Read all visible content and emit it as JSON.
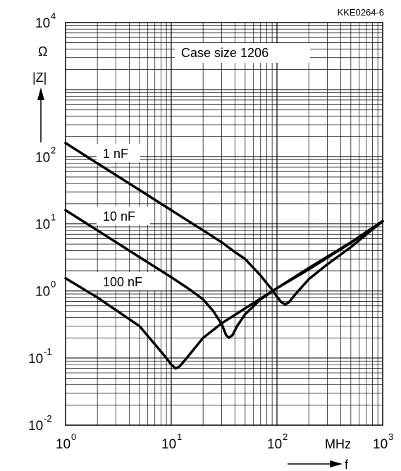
{
  "chart_data": {
    "type": "line",
    "figure_id": "KKE0264-6",
    "annotation": "Case size 1206",
    "x_scale": "log",
    "y_scale": "log",
    "xlim": [
      1,
      1000
    ],
    "ylim": [
      0.01,
      10000
    ],
    "grid": true,
    "x_tick_labels": [
      {
        "base": "10",
        "exp": "0"
      },
      {
        "base": "10",
        "exp": "1"
      },
      {
        "base": "10",
        "exp": "2"
      },
      {
        "base": "10",
        "exp": "3"
      }
    ],
    "y_tick_labels": [
      {
        "base": "10",
        "exp": "-2"
      },
      {
        "base": "10",
        "exp": "-1"
      },
      {
        "base": "10",
        "exp": "0"
      },
      {
        "base": "10",
        "exp": "1"
      },
      {
        "base": "10",
        "exp": "2"
      },
      {
        "base": "10",
        "exp": "4"
      }
    ],
    "x_unit": "MHz",
    "x_symbol": "f",
    "y_unit": "Ω",
    "y_symbol": "|Z|",
    "series": [
      {
        "name": "1 nF",
        "points": [
          [
            1,
            160
          ],
          [
            2,
            80
          ],
          [
            5,
            32
          ],
          [
            10,
            16
          ],
          [
            20,
            8
          ],
          [
            30,
            5.3
          ],
          [
            40,
            3.8
          ],
          [
            50,
            3
          ],
          [
            60,
            2.2
          ],
          [
            70,
            1.7
          ],
          [
            80,
            1.3
          ],
          [
            90,
            1.05
          ],
          [
            100,
            0.82
          ],
          [
            110,
            0.68
          ],
          [
            120,
            0.63
          ],
          [
            130,
            0.68
          ],
          [
            150,
            0.9
          ],
          [
            200,
            1.5
          ],
          [
            300,
            2.5
          ],
          [
            500,
            4.5
          ],
          [
            1000,
            11
          ]
        ]
      },
      {
        "name": "10 nF",
        "points": [
          [
            1,
            16
          ],
          [
            2,
            8
          ],
          [
            5,
            3.2
          ],
          [
            10,
            1.6
          ],
          [
            15,
            1.05
          ],
          [
            20,
            0.75
          ],
          [
            25,
            0.5
          ],
          [
            30,
            0.32
          ],
          [
            33,
            0.22
          ],
          [
            35,
            0.2
          ],
          [
            38,
            0.22
          ],
          [
            42,
            0.3
          ],
          [
            50,
            0.45
          ],
          [
            70,
            0.75
          ],
          [
            100,
            1.1
          ],
          [
            200,
            2.1
          ],
          [
            500,
            5.2
          ],
          [
            1000,
            11
          ]
        ]
      },
      {
        "name": "100 nF",
        "points": [
          [
            1,
            1.55
          ],
          [
            2,
            0.8
          ],
          [
            5,
            0.3
          ],
          [
            7,
            0.16
          ],
          [
            9,
            0.1
          ],
          [
            10,
            0.08
          ],
          [
            11,
            0.07
          ],
          [
            12,
            0.075
          ],
          [
            14,
            0.1
          ],
          [
            20,
            0.2
          ],
          [
            30,
            0.33
          ],
          [
            50,
            0.55
          ],
          [
            100,
            1.1
          ],
          [
            200,
            2.2
          ],
          [
            500,
            5.3
          ],
          [
            1000,
            11
          ]
        ]
      }
    ]
  }
}
